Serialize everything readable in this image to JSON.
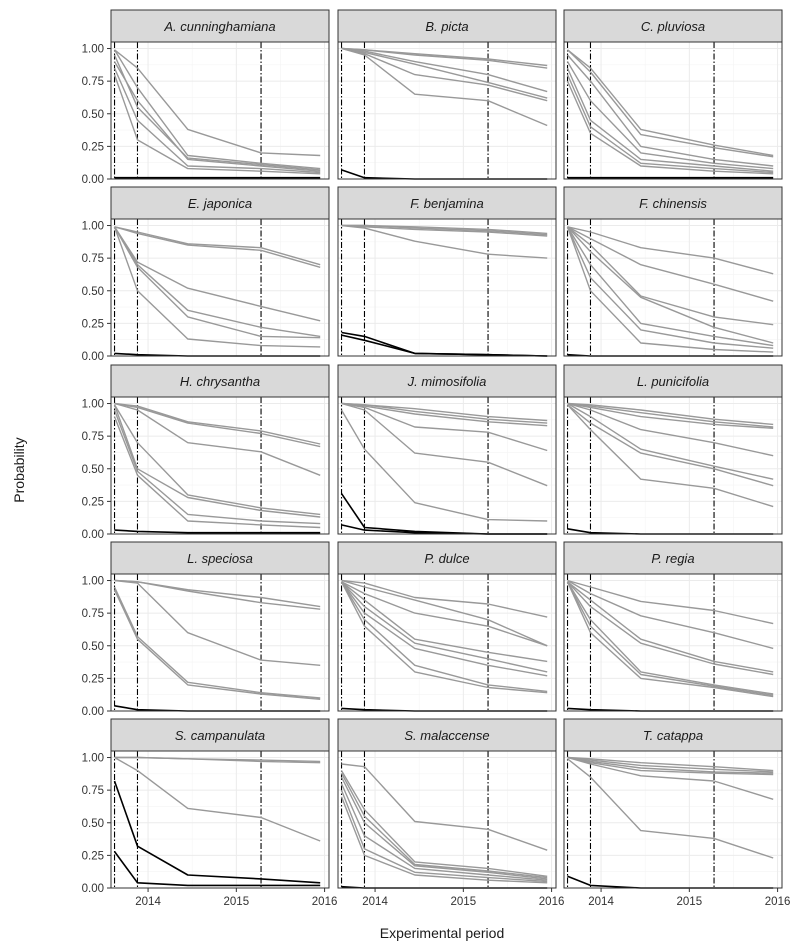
{
  "chart_data": {
    "type": "line",
    "layout": "facet-grid-5x3",
    "xlabel": "Experimental period",
    "ylabel": "Probability",
    "xlim": [
      2013.58,
      2016.05
    ],
    "ylim": [
      0,
      1.05
    ],
    "x_ticks": [
      2014,
      2015,
      2016
    ],
    "x_tick_labels": [
      "2014",
      "2015",
      "2016"
    ],
    "y_ticks": [
      0,
      0.25,
      0.5,
      0.75,
      1.0
    ],
    "y_tick_labels": [
      "0.00",
      "0.25",
      "0.50",
      "0.75",
      "1.00"
    ],
    "survey_dates": [
      2013.62,
      2013.88,
      2015.28
    ],
    "time_points": [
      2013.62,
      2013.88,
      2014.45,
      2015.28,
      2015.95
    ],
    "style": {
      "panel_bg": "#ffffff",
      "grid_color": "#ebebeb",
      "border_color": "#333333",
      "strip_bg": "#d9d9d9",
      "grey_line": "#999999",
      "black_line": "#000000"
    },
    "panels": [
      {
        "species": "A. cunninghamiana",
        "grey": [
          [
            0.99,
            0.85,
            0.38,
            0.2,
            0.18
          ],
          [
            0.99,
            0.7,
            0.18,
            0.12,
            0.08
          ],
          [
            0.9,
            0.6,
            0.15,
            0.1,
            0.06
          ],
          [
            0.85,
            0.45,
            0.1,
            0.08,
            0.05
          ],
          [
            0.8,
            0.3,
            0.08,
            0.06,
            0.04
          ],
          [
            0.95,
            0.55,
            0.16,
            0.11,
            0.07
          ]
        ],
        "black": [
          [
            0.01,
            0.01,
            0.01,
            0.01,
            0.01
          ]
        ]
      },
      {
        "species": "B. picta",
        "grey": [
          [
            1.0,
            0.99,
            0.96,
            0.92,
            0.87
          ],
          [
            1.0,
            0.99,
            0.95,
            0.91,
            0.85
          ],
          [
            1.0,
            0.98,
            0.9,
            0.8,
            0.67
          ],
          [
            1.0,
            0.97,
            0.88,
            0.74,
            0.62
          ],
          [
            1.0,
            0.96,
            0.8,
            0.72,
            0.6
          ],
          [
            1.0,
            0.95,
            0.65,
            0.6,
            0.41
          ]
        ],
        "black": [
          [
            0.07,
            0.01,
            0.0,
            0.0,
            0.0
          ]
        ]
      },
      {
        "species": "C. pluviosa",
        "grey": [
          [
            0.99,
            0.85,
            0.38,
            0.26,
            0.18
          ],
          [
            0.99,
            0.82,
            0.34,
            0.24,
            0.17
          ],
          [
            0.95,
            0.75,
            0.25,
            0.15,
            0.1
          ],
          [
            0.9,
            0.6,
            0.2,
            0.12,
            0.08
          ],
          [
            0.85,
            0.45,
            0.15,
            0.1,
            0.06
          ],
          [
            0.8,
            0.4,
            0.12,
            0.08,
            0.05
          ],
          [
            0.75,
            0.35,
            0.1,
            0.06,
            0.04
          ]
        ],
        "black": [
          [
            0.01,
            0.01,
            0.01,
            0.01,
            0.01
          ]
        ]
      },
      {
        "species": "E. japonica",
        "grey": [
          [
            0.99,
            0.95,
            0.86,
            0.83,
            0.7
          ],
          [
            0.99,
            0.94,
            0.85,
            0.81,
            0.68
          ],
          [
            0.99,
            0.72,
            0.52,
            0.38,
            0.27
          ],
          [
            0.99,
            0.7,
            0.35,
            0.22,
            0.15
          ],
          [
            0.99,
            0.68,
            0.3,
            0.15,
            0.14
          ],
          [
            0.99,
            0.5,
            0.13,
            0.08,
            0.07
          ]
        ],
        "black": [
          [
            0.02,
            0.01,
            0.0,
            0.0,
            0.0
          ]
        ]
      },
      {
        "species": "F. benjamina",
        "grey": [
          [
            1.0,
            1.0,
            0.99,
            0.97,
            0.94
          ],
          [
            1.0,
            1.0,
            0.98,
            0.96,
            0.93
          ],
          [
            1.0,
            0.99,
            0.97,
            0.95,
            0.92
          ],
          [
            1.0,
            0.98,
            0.88,
            0.78,
            0.75
          ]
        ],
        "black": [
          [
            0.18,
            0.15,
            0.02,
            0.01,
            0.0
          ],
          [
            0.16,
            0.12,
            0.02,
            0.01,
            0.0
          ]
        ]
      },
      {
        "species": "F. chinensis",
        "grey": [
          [
            0.99,
            0.95,
            0.83,
            0.75,
            0.63
          ],
          [
            0.99,
            0.9,
            0.7,
            0.55,
            0.42
          ],
          [
            0.99,
            0.85,
            0.46,
            0.3,
            0.24
          ],
          [
            0.99,
            0.8,
            0.45,
            0.22,
            0.1
          ],
          [
            0.99,
            0.7,
            0.25,
            0.15,
            0.08
          ],
          [
            0.99,
            0.6,
            0.2,
            0.1,
            0.06
          ],
          [
            0.99,
            0.5,
            0.1,
            0.05,
            0.03
          ]
        ],
        "black": [
          [
            0.01,
            0.0,
            0.0,
            0.0,
            0.0
          ]
        ]
      },
      {
        "species": "H. chrysantha",
        "grey": [
          [
            1.0,
            0.98,
            0.86,
            0.79,
            0.69
          ],
          [
            1.0,
            0.97,
            0.85,
            0.77,
            0.67
          ],
          [
            1.0,
            0.95,
            0.7,
            0.63,
            0.45
          ],
          [
            0.99,
            0.7,
            0.3,
            0.2,
            0.15
          ],
          [
            0.99,
            0.5,
            0.28,
            0.18,
            0.13
          ],
          [
            0.95,
            0.48,
            0.15,
            0.1,
            0.08
          ],
          [
            0.9,
            0.45,
            0.1,
            0.07,
            0.05
          ]
        ],
        "black": [
          [
            0.03,
            0.02,
            0.01,
            0.01,
            0.01
          ]
        ]
      },
      {
        "species": "J. mimosifolia",
        "grey": [
          [
            1.0,
            0.99,
            0.96,
            0.9,
            0.87
          ],
          [
            1.0,
            0.99,
            0.94,
            0.88,
            0.85
          ],
          [
            1.0,
            0.98,
            0.92,
            0.86,
            0.83
          ],
          [
            1.0,
            0.97,
            0.82,
            0.78,
            0.64
          ],
          [
            1.0,
            0.95,
            0.62,
            0.55,
            0.37
          ],
          [
            0.95,
            0.65,
            0.24,
            0.11,
            0.1
          ]
        ],
        "black": [
          [
            0.31,
            0.05,
            0.02,
            0.0,
            0.0
          ],
          [
            0.07,
            0.03,
            0.01,
            0.0,
            0.0
          ]
        ]
      },
      {
        "species": "L. punicifolia",
        "grey": [
          [
            1.0,
            0.99,
            0.95,
            0.88,
            0.84
          ],
          [
            1.0,
            0.98,
            0.93,
            0.86,
            0.82
          ],
          [
            1.0,
            0.97,
            0.9,
            0.84,
            0.81
          ],
          [
            1.0,
            0.95,
            0.8,
            0.7,
            0.6
          ],
          [
            1.0,
            0.9,
            0.65,
            0.52,
            0.42
          ],
          [
            0.99,
            0.85,
            0.62,
            0.5,
            0.37
          ],
          [
            0.99,
            0.8,
            0.42,
            0.35,
            0.21
          ]
        ],
        "black": [
          [
            0.04,
            0.01,
            0.0,
            0.0,
            0.0
          ]
        ]
      },
      {
        "species": "L. speciosa",
        "grey": [
          [
            1.0,
            0.99,
            0.93,
            0.87,
            0.8
          ],
          [
            1.0,
            0.99,
            0.92,
            0.83,
            0.78
          ],
          [
            1.0,
            0.98,
            0.6,
            0.39,
            0.35
          ],
          [
            0.95,
            0.57,
            0.22,
            0.14,
            0.1
          ],
          [
            0.93,
            0.55,
            0.2,
            0.13,
            0.09
          ]
        ],
        "black": [
          [
            0.04,
            0.01,
            0.0,
            0.0,
            0.0
          ]
        ]
      },
      {
        "species": "P. dulce",
        "grey": [
          [
            1.0,
            0.98,
            0.87,
            0.82,
            0.72
          ],
          [
            1.0,
            0.95,
            0.85,
            0.7,
            0.5
          ],
          [
            0.99,
            0.9,
            0.75,
            0.65,
            0.5
          ],
          [
            0.99,
            0.85,
            0.55,
            0.45,
            0.38
          ],
          [
            0.99,
            0.8,
            0.52,
            0.4,
            0.3
          ],
          [
            0.99,
            0.75,
            0.48,
            0.35,
            0.27
          ],
          [
            0.99,
            0.7,
            0.35,
            0.2,
            0.15
          ],
          [
            0.99,
            0.65,
            0.3,
            0.18,
            0.14
          ]
        ],
        "black": [
          [
            0.02,
            0.01,
            0.0,
            0.0,
            0.0
          ]
        ]
      },
      {
        "species": "P. regia",
        "grey": [
          [
            1.0,
            0.95,
            0.84,
            0.77,
            0.67
          ],
          [
            1.0,
            0.9,
            0.73,
            0.6,
            0.48
          ],
          [
            0.99,
            0.85,
            0.55,
            0.38,
            0.3
          ],
          [
            0.99,
            0.8,
            0.52,
            0.36,
            0.28
          ],
          [
            0.99,
            0.7,
            0.3,
            0.2,
            0.13
          ],
          [
            0.99,
            0.65,
            0.28,
            0.19,
            0.12
          ],
          [
            0.99,
            0.6,
            0.25,
            0.18,
            0.11
          ]
        ],
        "black": [
          [
            0.02,
            0.01,
            0.0,
            0.0,
            0.0
          ]
        ]
      },
      {
        "species": "S. campanulata",
        "grey": [
          [
            1.0,
            1.0,
            0.99,
            0.98,
            0.97
          ],
          [
            1.0,
            1.0,
            0.99,
            0.97,
            0.96
          ],
          [
            1.0,
            0.9,
            0.61,
            0.54,
            0.36
          ]
        ],
        "black": [
          [
            0.82,
            0.32,
            0.1,
            0.07,
            0.04
          ],
          [
            0.28,
            0.04,
            0.02,
            0.02,
            0.02
          ]
        ]
      },
      {
        "species": "S. malaccense",
        "grey": [
          [
            0.95,
            0.93,
            0.51,
            0.45,
            0.29
          ],
          [
            0.9,
            0.6,
            0.2,
            0.15,
            0.09
          ],
          [
            0.88,
            0.55,
            0.18,
            0.13,
            0.08
          ],
          [
            0.85,
            0.5,
            0.17,
            0.12,
            0.07
          ],
          [
            0.8,
            0.4,
            0.15,
            0.1,
            0.06
          ],
          [
            0.75,
            0.3,
            0.12,
            0.08,
            0.05
          ],
          [
            0.7,
            0.25,
            0.1,
            0.06,
            0.04
          ]
        ],
        "black": [
          [
            0.01,
            0.0,
            0.0,
            0.0,
            0.0
          ]
        ]
      },
      {
        "species": "T. catappa",
        "grey": [
          [
            1.0,
            0.99,
            0.96,
            0.93,
            0.9
          ],
          [
            1.0,
            0.98,
            0.94,
            0.91,
            0.89
          ],
          [
            1.0,
            0.97,
            0.92,
            0.89,
            0.88
          ],
          [
            1.0,
            0.96,
            0.9,
            0.88,
            0.87
          ],
          [
            1.0,
            0.95,
            0.86,
            0.82,
            0.68
          ],
          [
            0.99,
            0.85,
            0.44,
            0.38,
            0.23
          ]
        ],
        "black": [
          [
            0.09,
            0.02,
            0.0,
            0.0,
            0.0
          ]
        ]
      }
    ]
  }
}
